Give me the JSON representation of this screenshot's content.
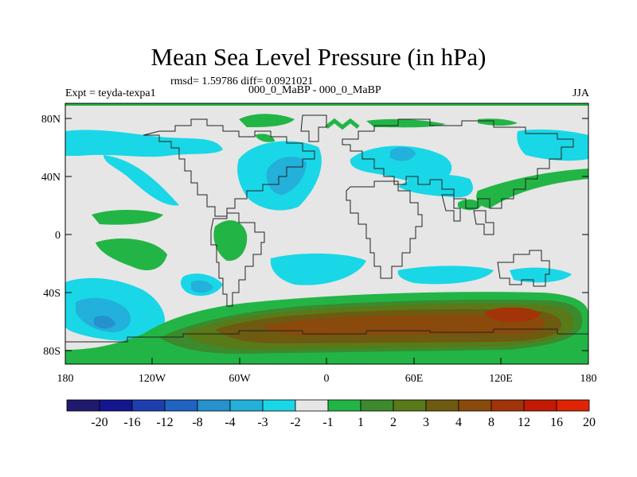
{
  "title": "Mean Sea Level Pressure (in hPa)",
  "stats": "rmsd= 1.59786 diff= 0.0921021",
  "left_label": "Expt = teyda-texpa1",
  "center_label": "000_0_MaBP - 000_0_MaBP",
  "right_label": "JJA",
  "lat_labels": [
    "80N",
    "40N",
    "0",
    "40S",
    "80S"
  ],
  "lon_labels": [
    "180",
    "120W",
    "60W",
    "0",
    "60E",
    "120E",
    "180"
  ],
  "colorbar": {
    "colors": [
      "#1f1a6e",
      "#14168f",
      "#1d3fae",
      "#1f63c3",
      "#2591cd",
      "#23b0db",
      "#19d7e6",
      "#e6e6e6",
      "#22b545",
      "#3c8a2e",
      "#587a18",
      "#6e5a10",
      "#8a4a0c",
      "#a33308",
      "#c21a05",
      "#e02403"
    ],
    "labels": [
      "-20",
      "-16",
      "-12",
      "-8",
      "-4",
      "-3",
      "-2",
      "-1",
      "1",
      "2",
      "3",
      "4",
      "8",
      "12",
      "16",
      "20"
    ]
  },
  "colors": {
    "background": "#e6e6e6",
    "coast": "#222222",
    "frame": "#000000"
  }
}
